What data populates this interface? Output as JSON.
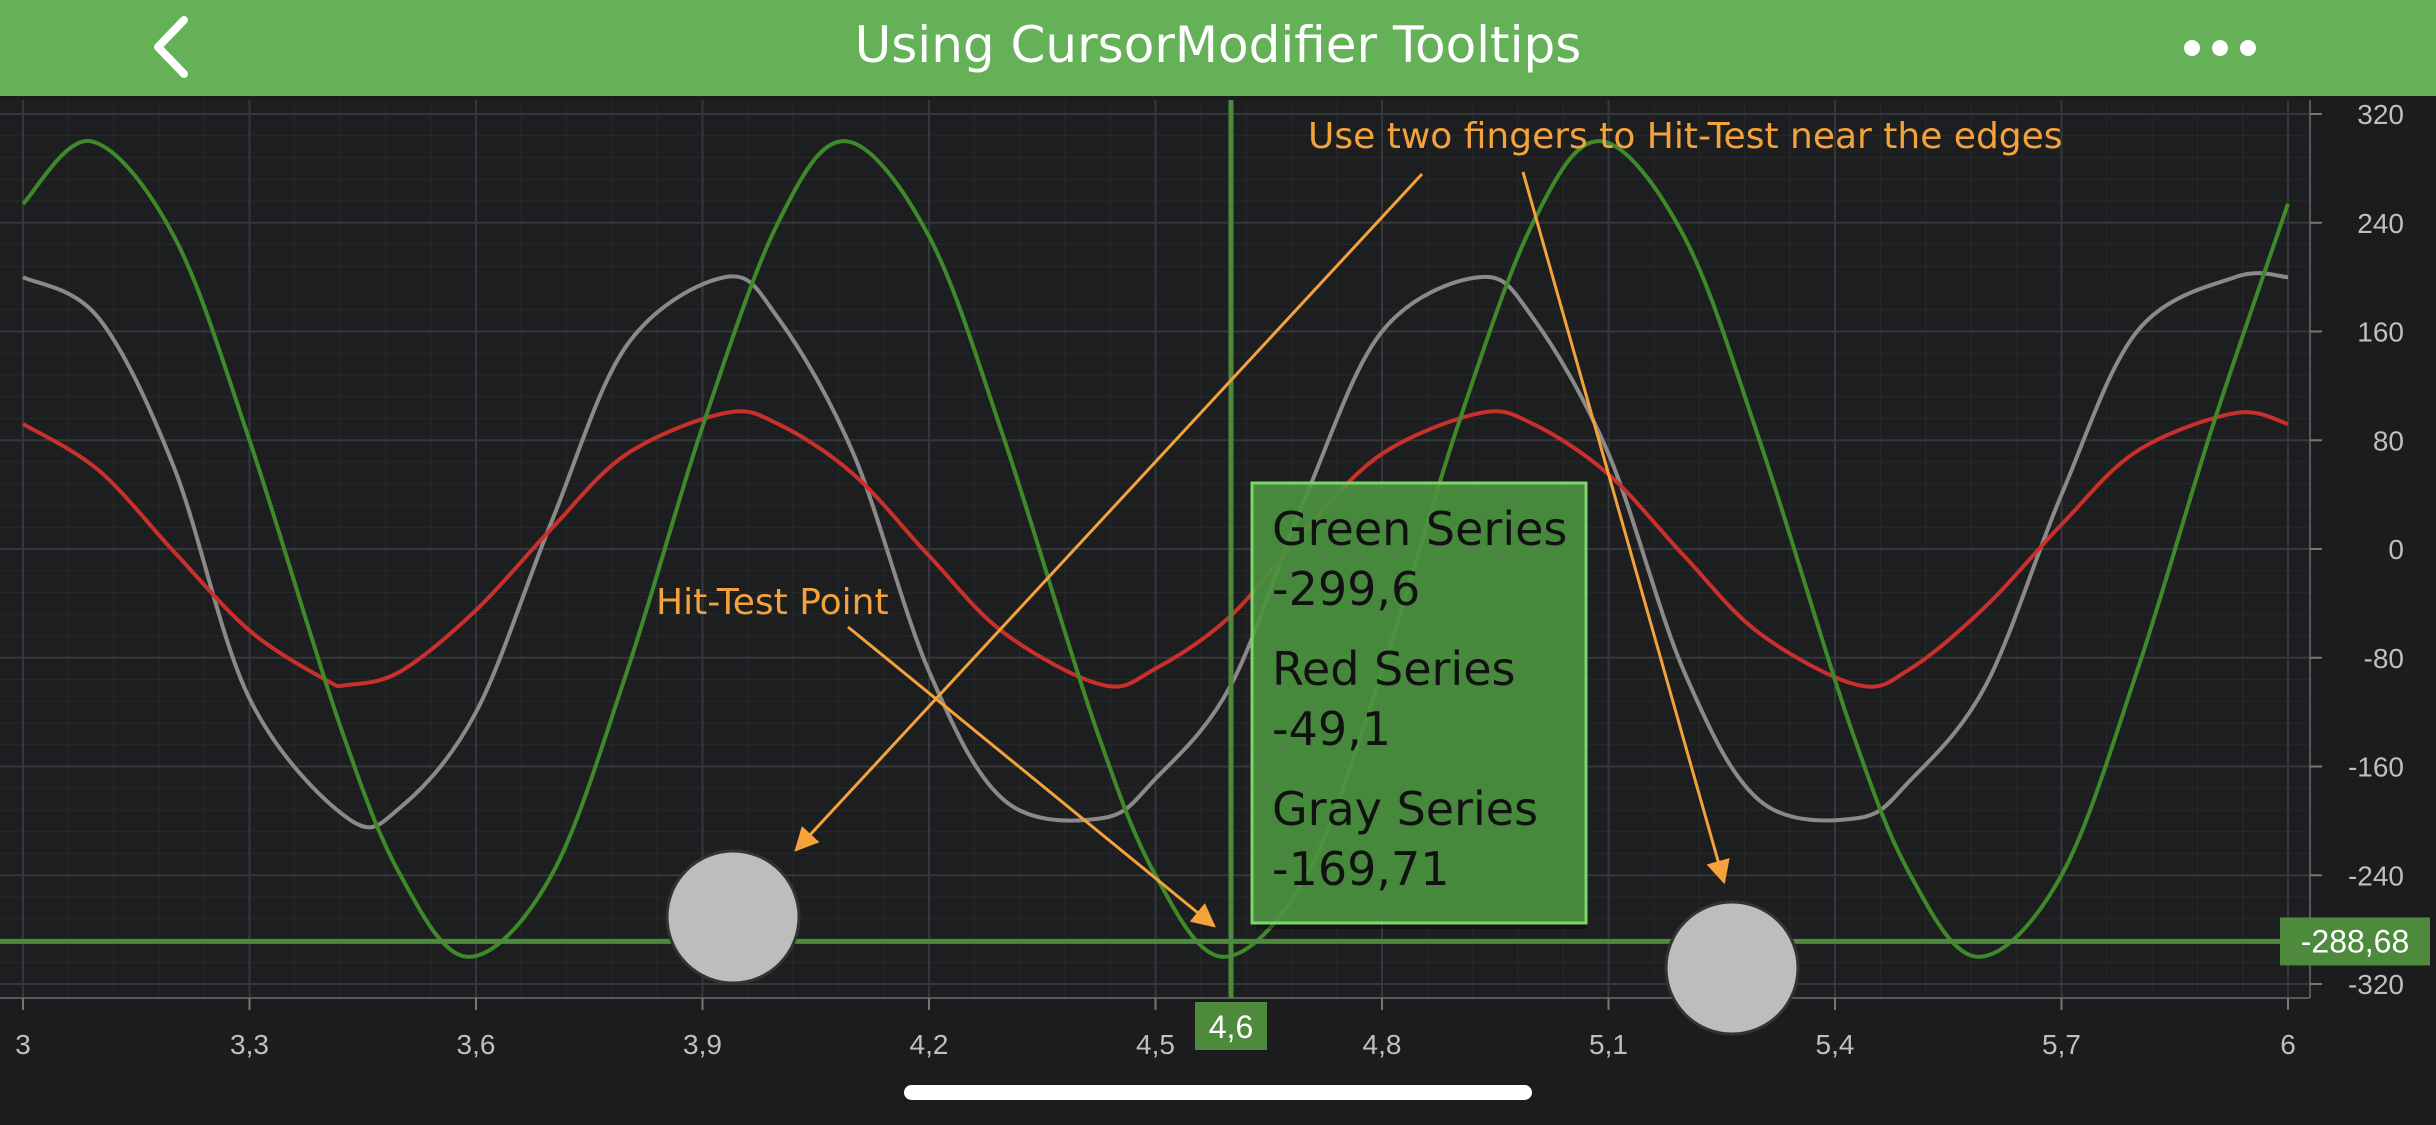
{
  "header": {
    "title": "Using CursorModifier Tooltips"
  },
  "icons": {
    "back": "chevron-left-icon",
    "more": "more-dots-icon"
  },
  "annotations": {
    "top": "Use two fingers to Hit-Test near the edges",
    "point": "Hit-Test Point"
  },
  "tooltip": {
    "rows": [
      {
        "name": "Green Series",
        "value": "-299,6"
      },
      {
        "name": "Red Series",
        "value": "-49,1"
      },
      {
        "name": "Gray Series",
        "value": "-169,71"
      }
    ]
  },
  "cursor": {
    "x_label": "4,6",
    "y_label": "-288,68",
    "x": 4.6,
    "y": -288.68
  },
  "colors": {
    "header": "#64b157",
    "background": "#1c1c1e",
    "green_series": "#3e8a2a",
    "red_series": "#c9302c",
    "gray_series": "#8a8a8a",
    "annotation": "#f4a23b",
    "cursor": "#4d8a3c"
  },
  "chart_data": {
    "type": "line",
    "xlim": [
      3.0,
      6.0
    ],
    "ylim": [
      -320,
      320
    ],
    "x_ticks": [
      "3",
      "3,3",
      "3,6",
      "3,9",
      "4,2",
      "4,5",
      "4,8",
      "5,1",
      "5,4",
      "5,7",
      "6"
    ],
    "x_tick_values": [
      3.0,
      3.3,
      3.6,
      3.9,
      4.2,
      4.5,
      4.8,
      5.1,
      5.4,
      5.7,
      6.0
    ],
    "y_ticks": [
      "320",
      "240",
      "160",
      "80",
      "0",
      "-80",
      "-160",
      "-240",
      "-320"
    ],
    "y_tick_values": [
      320,
      240,
      160,
      80,
      0,
      -80,
      -160,
      -240,
      -320
    ],
    "grid": true,
    "series": [
      {
        "name": "Green Series",
        "color": "#3e8a2a",
        "x": [
          3.0,
          3.09,
          3.2,
          3.3,
          3.42,
          3.5,
          3.59,
          3.7,
          3.8,
          3.9,
          4.0,
          4.09,
          4.2,
          4.3,
          4.42,
          4.5,
          4.59,
          4.7,
          4.8,
          4.9,
          5.0,
          5.09,
          5.2,
          5.3,
          5.42,
          5.5,
          5.59,
          5.7,
          5.8,
          5.9,
          6.0
        ],
        "y": [
          254,
          300,
          230,
          80,
          -130,
          -240,
          -300,
          -240,
          -90,
          90,
          240,
          300,
          230,
          80,
          -130,
          -240,
          -300,
          -240,
          -90,
          90,
          240,
          300,
          230,
          80,
          -130,
          -240,
          -300,
          -240,
          -90,
          90,
          254
        ]
      },
      {
        "name": "Red Series",
        "color": "#c9302c",
        "x": [
          3.0,
          3.1,
          3.2,
          3.3,
          3.4,
          3.43,
          3.5,
          3.6,
          3.7,
          3.8,
          3.93,
          4.0,
          4.1,
          4.2,
          4.3,
          4.43,
          4.5,
          4.6,
          4.7,
          4.8,
          4.93,
          5.0,
          5.1,
          5.2,
          5.3,
          5.43,
          5.5,
          5.6,
          5.7,
          5.8,
          5.93,
          6.0
        ],
        "y": [
          92,
          58,
          -2,
          -60,
          -96,
          -100,
          -90,
          -45,
          15,
          70,
          100,
          92,
          55,
          -5,
          -62,
          -100,
          -88,
          -49,
          15,
          70,
          100,
          92,
          55,
          -5,
          -62,
          -100,
          -88,
          -42,
          18,
          72,
          100,
          92
        ]
      },
      {
        "name": "Gray Series",
        "color": "#8a8a8a",
        "x": [
          3.0,
          3.1,
          3.2,
          3.3,
          3.43,
          3.5,
          3.6,
          3.7,
          3.8,
          3.93,
          4.0,
          4.1,
          4.2,
          4.3,
          4.43,
          4.5,
          4.6,
          4.7,
          4.8,
          4.93,
          5.0,
          5.1,
          5.2,
          5.3,
          5.43,
          5.5,
          5.6,
          5.7,
          5.8,
          5.93,
          6.0
        ],
        "y": [
          200,
          170,
          60,
          -110,
          -198,
          -190,
          -120,
          20,
          150,
          200,
          170,
          70,
          -90,
          -185,
          -198,
          -169,
          -100,
          40,
          160,
          200,
          170,
          70,
          -90,
          -185,
          -198,
          -170,
          -100,
          40,
          160,
          200,
          200
        ]
      }
    ]
  }
}
